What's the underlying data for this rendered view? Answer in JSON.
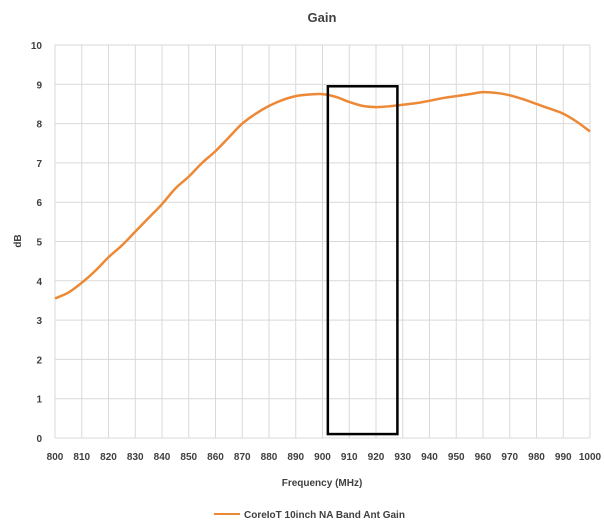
{
  "chart_data": {
    "type": "line",
    "title": "Gain",
    "xlabel": "Frequency (MHz)",
    "ylabel": "dB",
    "xlim": [
      800,
      1000
    ],
    "ylim": [
      0,
      10
    ],
    "x_ticks": [
      "800",
      "810",
      "820",
      "830",
      "840",
      "850",
      "860",
      "870",
      "880",
      "890",
      "900",
      "910",
      "920",
      "930",
      "940",
      "950",
      "960",
      "970",
      "980",
      "990",
      "1000"
    ],
    "y_ticks": [
      "0",
      "1",
      "2",
      "3",
      "4",
      "5",
      "6",
      "7",
      "8",
      "9",
      "10"
    ],
    "grid": true,
    "legend_position": "bottom",
    "series": [
      {
        "name": "CoreIoT 10inch NA Band Ant Gain",
        "color": "#ED8936",
        "x": [
          800,
          805,
          810,
          815,
          820,
          825,
          830,
          835,
          840,
          845,
          850,
          855,
          860,
          865,
          870,
          875,
          880,
          885,
          890,
          895,
          900,
          905,
          910,
          915,
          920,
          925,
          930,
          935,
          940,
          945,
          950,
          955,
          960,
          965,
          970,
          975,
          980,
          985,
          990,
          995,
          1000
        ],
        "y": [
          3.55,
          3.7,
          3.95,
          4.25,
          4.6,
          4.9,
          5.25,
          5.6,
          5.95,
          6.35,
          6.65,
          7.0,
          7.3,
          7.65,
          8.0,
          8.25,
          8.45,
          8.6,
          8.7,
          8.74,
          8.75,
          8.68,
          8.55,
          8.45,
          8.42,
          8.44,
          8.48,
          8.52,
          8.58,
          8.65,
          8.7,
          8.75,
          8.8,
          8.78,
          8.72,
          8.62,
          8.5,
          8.38,
          8.25,
          8.05,
          7.8
        ]
      }
    ],
    "annotations": [
      {
        "type": "rectangle",
        "x_range": [
          902,
          928
        ],
        "y_range": [
          0.1,
          8.95
        ],
        "color": "#000000"
      }
    ]
  }
}
